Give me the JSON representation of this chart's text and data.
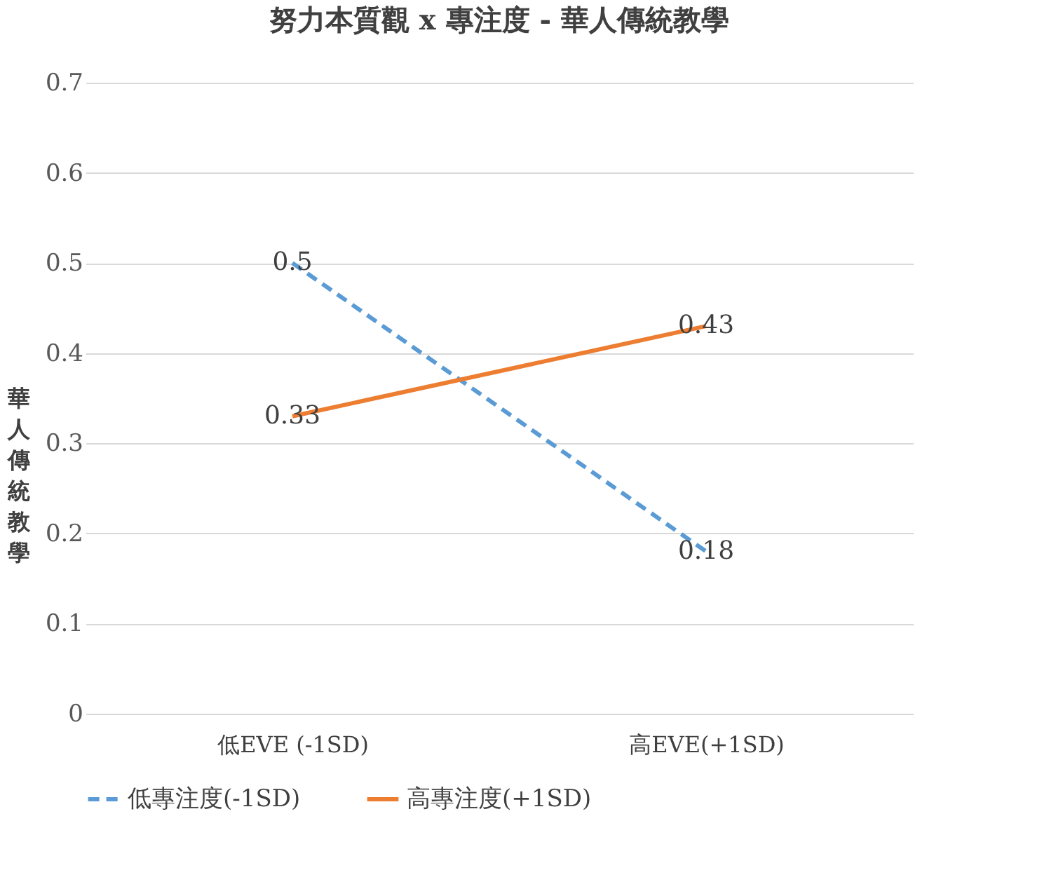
{
  "chart_data": {
    "type": "line",
    "title": "努力本質觀 x 專注度 - 華人傳統教學",
    "ylabel": "華人傳統教學",
    "categories": [
      "低EVE (-1SD)",
      "高EVE(+1SD)"
    ],
    "series": [
      {
        "name": "低專注度(-1SD)",
        "color": "#5b9bd5",
        "values": [
          0.5,
          0.18
        ],
        "line_style": "dashed"
      },
      {
        "name": "高專注度(+1SD)",
        "color": "#ed7d31",
        "values": [
          0.33,
          0.43
        ],
        "line_style": "solid"
      }
    ],
    "ylim": [
      0,
      0.7
    ],
    "yticks": [
      0,
      0.1,
      0.2,
      0.3,
      0.4,
      0.5,
      0.6,
      0.7
    ],
    "grid": "y",
    "legend": "bottom",
    "data_labels": true,
    "marker": "none"
  }
}
